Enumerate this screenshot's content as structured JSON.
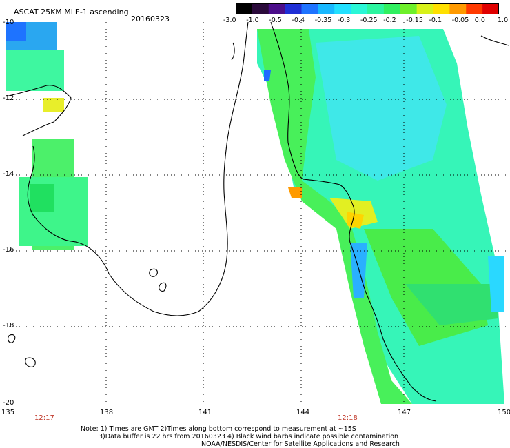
{
  "header": {
    "title": "ASCAT 25KM MLE-1 ascending",
    "date": "20160323"
  },
  "colorbar": {
    "tick_labels": [
      "-3.0",
      "-1.0",
      "-0.5",
      "-0.4",
      "-0.35",
      "-0.3",
      "-0.25",
      "-0.2",
      "-0.15",
      "-0.1",
      "-0.05",
      "0.0",
      "1.0"
    ],
    "colors": [
      "#000000",
      "#2a0a3a",
      "#4b0d8a",
      "#1f2fd6",
      "#1e73ff",
      "#18b8ff",
      "#22e0ff",
      "#2af7d7",
      "#2cf5a0",
      "#30f060",
      "#6ef02a",
      "#d8f21a",
      "#ffe000",
      "#ff9a00",
      "#ff3a00",
      "#e00000"
    ]
  },
  "axes": {
    "lat_labels": [
      "-10",
      "-12",
      "-14",
      "-16",
      "-18",
      "-20"
    ],
    "lon_labels": [
      "135",
      "138",
      "141",
      "144",
      "147",
      "150"
    ]
  },
  "times": [
    "12:17",
    "12:18"
  ],
  "notes": [
    "Note: 1) Times are GMT 2)Times along bottom correspond to measurement at ~15S",
    "3)Data buffer is 22 hrs from 20160323 4) Black wind barbs indicate possible contamination",
    "NOAA/NESDIS/Center for Satellite Applications and Research"
  ]
}
